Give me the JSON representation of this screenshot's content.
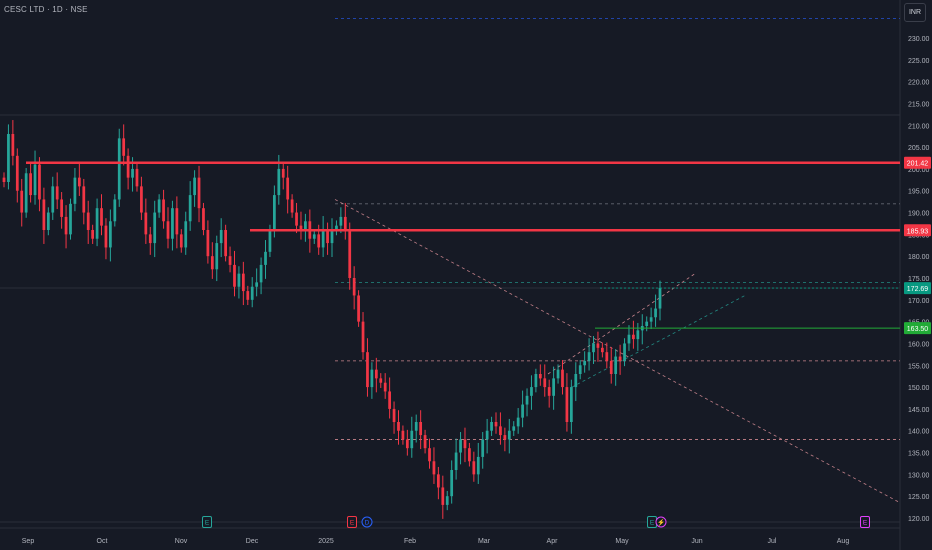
{
  "header": {
    "symbol": "CESC LTD · 1D · NSE"
  },
  "currency_button": "INR",
  "chart_data": {
    "type": "candlestick",
    "title": "CESC LTD · 1D · NSE",
    "currency": "INR",
    "ylim": [
      118,
      235
    ],
    "y_ticks": [
      120,
      125,
      130,
      135,
      140,
      145,
      150,
      155,
      160,
      165,
      170,
      175,
      180,
      185,
      190,
      195,
      200,
      205,
      210,
      215,
      220,
      225,
      230
    ],
    "x_ticks": [
      "Sep",
      "Oct",
      "Nov",
      "Dec",
      "2025",
      "Feb",
      "Mar",
      "Apr",
      "May",
      "Jun",
      "Jul",
      "Aug"
    ],
    "close_series": [
      197,
      208,
      203,
      195,
      190,
      199,
      194,
      201,
      193,
      186,
      190,
      196,
      193,
      189,
      185,
      192,
      198,
      196,
      190,
      186,
      184,
      191,
      187,
      182,
      188,
      193,
      207,
      203,
      198,
      200,
      196,
      190,
      185,
      183,
      190,
      193,
      188,
      184,
      191,
      185,
      182,
      188,
      194,
      198,
      191,
      186,
      180,
      177,
      183,
      186,
      180,
      178,
      173,
      176,
      172,
      170,
      173,
      174,
      178,
      181,
      186,
      194,
      200,
      198,
      193,
      190,
      187,
      186,
      188,
      184,
      185,
      182,
      186,
      183,
      186,
      187,
      189,
      186,
      175,
      171,
      165,
      158,
      150,
      154,
      152,
      151,
      149,
      145,
      142,
      140,
      138,
      136,
      140,
      142,
      139,
      136,
      133,
      130,
      127,
      123,
      125,
      131,
      135,
      138,
      136,
      133,
      130,
      134,
      138,
      140,
      142,
      141,
      139,
      138,
      140,
      141,
      143,
      146,
      148,
      150,
      153,
      152,
      150,
      148,
      152,
      154,
      150,
      142,
      150,
      153,
      155,
      156,
      158,
      160,
      159,
      158,
      156,
      153,
      157,
      156,
      160,
      162,
      161,
      163,
      164,
      165,
      166,
      168,
      172.69
    ],
    "horizontal_levels": [
      {
        "value": 201.42,
        "label": "201.42",
        "color": "#f23645",
        "style": "solid"
      },
      {
        "value": 185.93,
        "label": "185.93",
        "color": "#f23645",
        "style": "solid"
      },
      {
        "value": 172.69,
        "label": "172.69",
        "color": "#089981",
        "style": "current-price"
      },
      {
        "value": 163.5,
        "label": "163.50",
        "color": "#22ab37",
        "style": "solid"
      },
      {
        "value": 192.0,
        "color": "#787b86",
        "style": "dashed"
      },
      {
        "value": 174.0,
        "color": "#26a69a",
        "style": "dashed"
      },
      {
        "value": 156.0,
        "color": "#f7a0a8",
        "style": "dashed"
      },
      {
        "value": 138.0,
        "color": "#f7a0a8",
        "style": "dashed"
      },
      {
        "value": 234.5,
        "color": "#2962ff",
        "style": "dashed"
      }
    ],
    "event_markers": [
      {
        "label": "E",
        "month": "Nov",
        "color": "#26a69a"
      },
      {
        "label": "E",
        "month": "2025",
        "color": "#f23645"
      },
      {
        "label": "D",
        "month": "2025",
        "color": "#2962ff"
      },
      {
        "label": "E",
        "month": "May",
        "color": "#26a69a"
      },
      {
        "label": "⚡",
        "month": "May",
        "color": "#e040fb"
      },
      {
        "label": "E",
        "month": "Aug",
        "color": "#e040fb"
      }
    ],
    "colors": {
      "up": "#26a69a",
      "down": "#f23645",
      "background": "#161a25"
    }
  }
}
